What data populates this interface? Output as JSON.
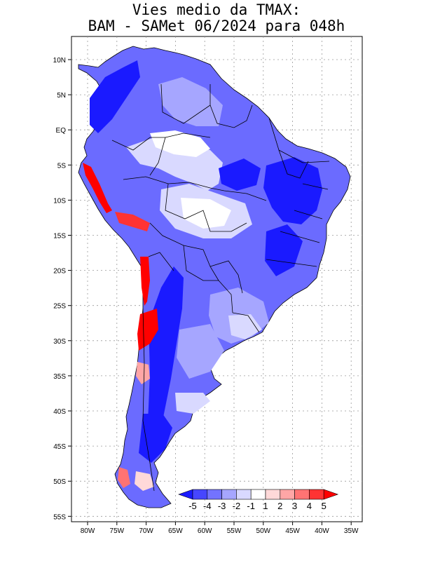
{
  "title_line1": "Vies medio da TMAX:",
  "title_line2": "BAM - SAMet 06/2024  para 048h",
  "map": {
    "lon_labels": [
      "80W",
      "75W",
      "70W",
      "65W",
      "60W",
      "55W",
      "50W",
      "45W",
      "40W",
      "35W"
    ],
    "lat_labels": [
      "10N",
      "5N",
      "EQ",
      "5S",
      "10S",
      "15S",
      "20S",
      "25S",
      "30S",
      "35S",
      "40S",
      "45S",
      "50S",
      "55S"
    ],
    "lon_range": [
      -83,
      -34
    ],
    "lat_range": [
      12.5,
      -56
    ]
  },
  "colorbar": {
    "labels": [
      "-5",
      "-4",
      "-3",
      "-2",
      "-1",
      "1",
      "2",
      "3",
      "4",
      "5"
    ],
    "colors": [
      "#1a1aff",
      "#4646ff",
      "#7373ff",
      "#a6a6ff",
      "#d9d9ff",
      "#ffffff",
      "#ffd9d9",
      "#ffa6a6",
      "#ff7373",
      "#ff3333",
      "#ff0000"
    ]
  }
}
